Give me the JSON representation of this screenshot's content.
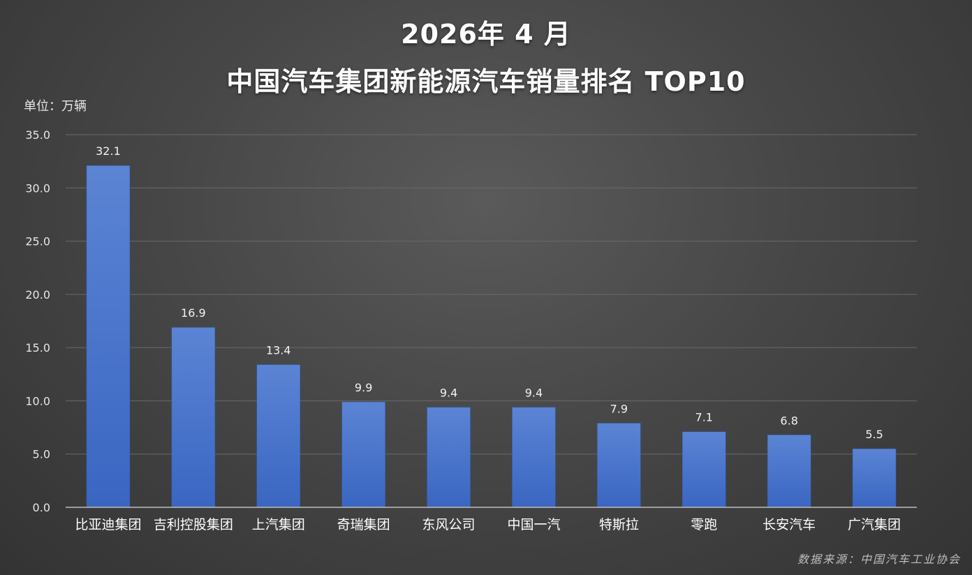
{
  "chart_data": {
    "type": "bar",
    "title_line1": "2026年 4 月",
    "title_line2": "中国汽车集团新能源汽车销量排名  TOP10",
    "ylabel": "单位：万辆",
    "source": "数据来源：中国汽车工业协会",
    "categories": [
      "比亚迪集团",
      "吉利控股集团",
      "上汽集团",
      "奇瑞集团",
      "东风公司",
      "中国一汽",
      "特斯拉",
      "零跑",
      "长安汽车",
      "广汽集团"
    ],
    "values": [
      32.1,
      16.9,
      13.4,
      9.9,
      9.4,
      9.4,
      7.9,
      7.1,
      6.8,
      5.5
    ],
    "value_labels": [
      "32.1",
      "16.9",
      "13.4",
      "9.9",
      "9.4",
      "9.4",
      "7.9",
      "7.1",
      "6.8",
      "5.5"
    ],
    "yticks": [
      "0.0",
      "5.0",
      "10.0",
      "15.0",
      "20.0",
      "25.0",
      "30.0",
      "35.0"
    ],
    "ylim": [
      0,
      35
    ],
    "grid": true,
    "legend": "none",
    "bar_color": "#4472c4"
  }
}
